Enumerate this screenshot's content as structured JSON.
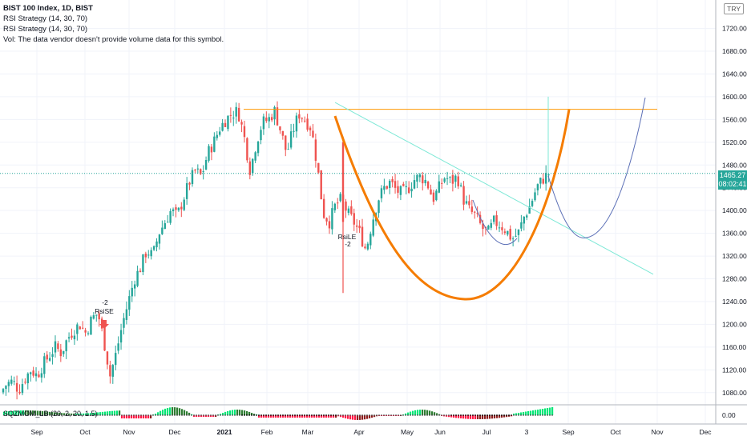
{
  "legend": {
    "title": "BIST 100 Index, 1D, BIST",
    "strategy1": "RSI Strategy (14, 30, 70)",
    "strategy2": "RSI Strategy (14, 30, 70)",
    "volume_note": "Vol: The data vendor doesn't provide volume data for this symbol."
  },
  "currency_badge": "TRY",
  "price_tag": {
    "price": "1465.27",
    "countdown": "08:02:41"
  },
  "oscillator": {
    "label": "SQZMOM_LB (20, 2, 20, 1.5)"
  },
  "colors": {
    "up": "#26a69a",
    "down": "#ef5350",
    "cup": "#f57c00",
    "resistance": "#ff9800",
    "trendline": "#7de8d6",
    "projection": "#5b6fb6"
  },
  "chart_data": {
    "type": "candlestick",
    "symbol": "BIST 100",
    "timeframe": "1D",
    "x_ticks": [
      "Sep",
      "Oct",
      "Nov",
      "Dec",
      "2021",
      "Feb",
      "Mar",
      "Apr",
      "May",
      "Jun",
      "Jul",
      "3",
      "Sep",
      "Oct",
      "Nov",
      "Dec"
    ],
    "y_ticks": [
      1080,
      1120,
      1160,
      1200,
      1240,
      1280,
      1320,
      1360,
      1400,
      1440,
      1480,
      1520,
      1560,
      1600,
      1640,
      1680,
      1720
    ],
    "ylim": [
      1060,
      1770
    ],
    "osc_tick": "0.00",
    "last_price": 1465.27,
    "resistance_level": 1578,
    "signals": [
      {
        "text": "RsiSE",
        "qty": "-2"
      },
      {
        "text": "RsiLE",
        "qty": "-2"
      }
    ],
    "price_path": [
      1080,
      1095,
      1100,
      1085,
      1105,
      1120,
      1110,
      1130,
      1145,
      1160,
      1150,
      1175,
      1190,
      1200,
      1185,
      1210,
      1220,
      1170,
      1110,
      1150,
      1200,
      1240,
      1280,
      1300,
      1330,
      1320,
      1360,
      1380,
      1400,
      1390,
      1420,
      1450,
      1470,
      1460,
      1500,
      1520,
      1545,
      1560,
      1570,
      1575,
      1530,
      1470,
      1520,
      1555,
      1560,
      1575,
      1540,
      1500,
      1540,
      1570,
      1560,
      1545,
      1480,
      1395,
      1380,
      1410,
      1420,
      1395,
      1380,
      1360,
      1330,
      1380,
      1420,
      1440,
      1450,
      1435,
      1430,
      1440,
      1455,
      1460,
      1450,
      1420,
      1440,
      1460,
      1450,
      1460,
      1420,
      1400,
      1390,
      1370,
      1360,
      1380,
      1375,
      1365,
      1350,
      1360,
      1390,
      1410,
      1440,
      1455,
      1465
    ]
  }
}
